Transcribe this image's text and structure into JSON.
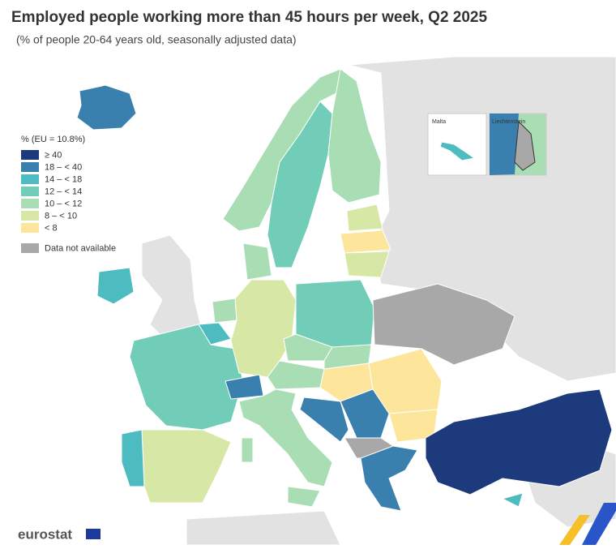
{
  "header": {
    "title": "Employed people working more than 45 hours per week, Q2 2025",
    "subtitle": "(% of people 20-64 years old, seasonally adjusted data)"
  },
  "legend": {
    "title": "% (EU = 10.8%)",
    "items": [
      {
        "label": "≥ 40",
        "color": "#1c3a7c"
      },
      {
        "label": "18 – < 40",
        "color": "#3a80ae"
      },
      {
        "label": "14 – < 18",
        "color": "#4dbcc0"
      },
      {
        "label": "12 – < 14",
        "color": "#72cdb8"
      },
      {
        "label": "10 – < 12",
        "color": "#a9ddb3"
      },
      {
        "label": "8 – < 10",
        "color": "#d7e8a6"
      },
      {
        "label": "< 8",
        "color": "#fde69b"
      }
    ],
    "na": {
      "label": "Data not available",
      "color": "#a8a8a8"
    }
  },
  "insets": [
    "Malta",
    "Liechtenstein"
  ],
  "footer": {
    "logo": "eurostat"
  }
}
